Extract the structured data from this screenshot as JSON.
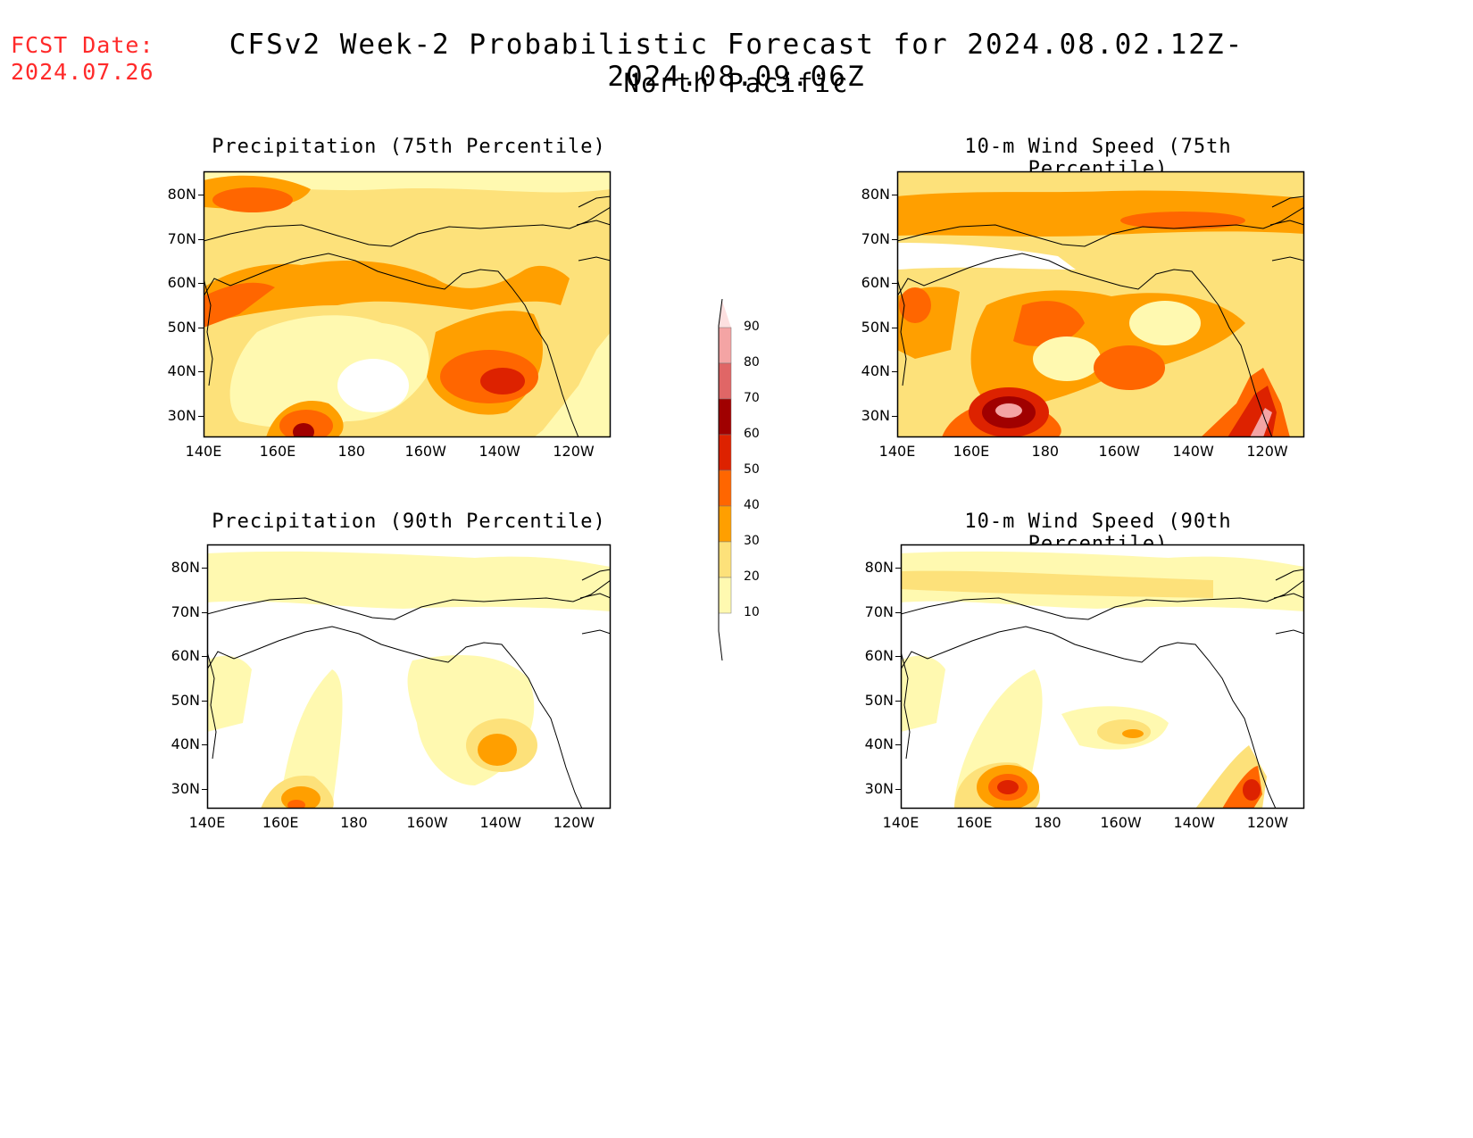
{
  "fcst": {
    "label": "FCST Date:",
    "date": "2024.07.26"
  },
  "title": "CFSv2 Week-2 Probabilistic Forecast for 2024.08.02.12Z-2024.08.09.06Z",
  "subtitle": "North Pacific",
  "panels": [
    {
      "title": "Precipitation (75th Percentile)"
    },
    {
      "title": "10-m Wind Speed (75th Percentile)"
    },
    {
      "title": "Precipitation (90th Percentile)"
    },
    {
      "title": "10-m Wind Speed (90th Percentile)"
    }
  ],
  "axes": {
    "lat_labels": [
      "80N",
      "70N",
      "60N",
      "50N",
      "40N",
      "30N"
    ],
    "lon_labels": [
      "140E",
      "160E",
      "180",
      "160W",
      "140W",
      "120W"
    ]
  },
  "colorbar": {
    "levels": [
      "90",
      "80",
      "70",
      "60",
      "50",
      "40",
      "30",
      "20",
      "10"
    ],
    "colors": [
      "#fde0e0",
      "#f4a4a4",
      "#e06666",
      "#a00000",
      "#dd2200",
      "#ff6600",
      "#ff9f00",
      "#fde17a",
      "#fff9b0"
    ]
  }
}
